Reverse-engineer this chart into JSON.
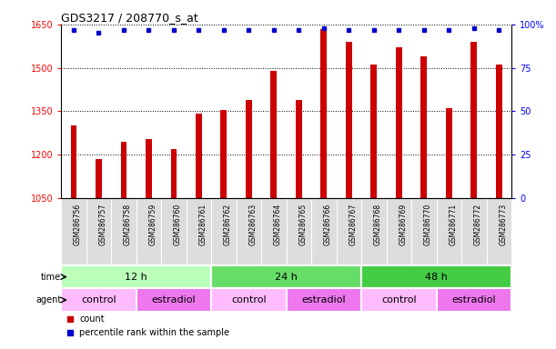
{
  "title": "GDS3217 / 208770_s_at",
  "samples": [
    "GSM286756",
    "GSM286757",
    "GSM286758",
    "GSM286759",
    "GSM286760",
    "GSM286761",
    "GSM286762",
    "GSM286763",
    "GSM286764",
    "GSM286765",
    "GSM286766",
    "GSM286767",
    "GSM286768",
    "GSM286769",
    "GSM286770",
    "GSM286771",
    "GSM286772",
    "GSM286773"
  ],
  "counts": [
    1300,
    1185,
    1245,
    1255,
    1220,
    1340,
    1355,
    1390,
    1490,
    1390,
    1635,
    1590,
    1510,
    1570,
    1540,
    1360,
    1590,
    1510
  ],
  "percentiles": [
    97,
    95,
    97,
    97,
    97,
    97,
    97,
    97,
    97,
    97,
    98,
    97,
    97,
    97,
    97,
    97,
    98,
    97
  ],
  "bar_color": "#cc0000",
  "dot_color": "#0000cc",
  "ylim_left": [
    1050,
    1650
  ],
  "yticks_left": [
    1050,
    1200,
    1350,
    1500,
    1650
  ],
  "ylim_right": [
    0,
    100
  ],
  "yticks_right": [
    0,
    25,
    50,
    75,
    100
  ],
  "time_groups": [
    {
      "label": "12 h",
      "start": 0,
      "end": 6,
      "color": "#bbffbb"
    },
    {
      "label": "24 h",
      "start": 6,
      "end": 12,
      "color": "#66dd66"
    },
    {
      "label": "48 h",
      "start": 12,
      "end": 18,
      "color": "#44cc44"
    }
  ],
  "agent_groups": [
    {
      "label": "control",
      "start": 0,
      "end": 3,
      "color": "#ffbbff"
    },
    {
      "label": "estradiol",
      "start": 3,
      "end": 6,
      "color": "#ee77ee"
    },
    {
      "label": "control",
      "start": 6,
      "end": 9,
      "color": "#ffbbff"
    },
    {
      "label": "estradiol",
      "start": 9,
      "end": 12,
      "color": "#ee77ee"
    },
    {
      "label": "control",
      "start": 12,
      "end": 15,
      "color": "#ffbbff"
    },
    {
      "label": "estradiol",
      "start": 15,
      "end": 18,
      "color": "#ee77ee"
    }
  ],
  "xtick_bg_color": "#dddddd",
  "legend_items": [
    {
      "label": "count",
      "color": "#cc0000"
    },
    {
      "label": "percentile rank within the sample",
      "color": "#0000cc"
    }
  ]
}
